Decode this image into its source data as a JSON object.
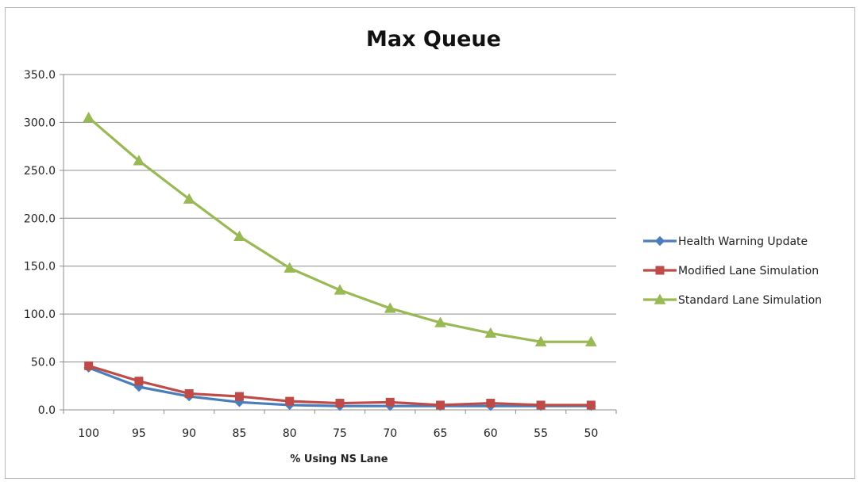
{
  "chart_data": {
    "type": "line",
    "title": "Max Queue",
    "xlabel": "% Using NS Lane",
    "ylabel": "",
    "categories": [
      "100",
      "95",
      "90",
      "85",
      "80",
      "75",
      "70",
      "65",
      "60",
      "55",
      "50"
    ],
    "ylim": [
      0,
      350
    ],
    "yticks": [
      "0.0",
      "50.0",
      "100.0",
      "150.0",
      "200.0",
      "250.0",
      "300.0",
      "350.0"
    ],
    "grid": "horizontal",
    "legend_position": "right",
    "series": [
      {
        "name": "Health Warning Update",
        "color": "#4a7ebb",
        "marker": "diamond",
        "values": [
          44,
          24,
          14,
          8,
          5,
          4,
          4,
          4,
          4,
          4,
          4
        ]
      },
      {
        "name": "Modified Lane Simulation",
        "color": "#be4b48",
        "marker": "square",
        "values": [
          46,
          30,
          17,
          14,
          9,
          7,
          8,
          5,
          7,
          5,
          5
        ]
      },
      {
        "name": "Standard Lane Simulation",
        "color": "#98b954",
        "marker": "triangle",
        "values": [
          305,
          260,
          220,
          181,
          148,
          125,
          106,
          91,
          80,
          71,
          71
        ]
      }
    ]
  }
}
